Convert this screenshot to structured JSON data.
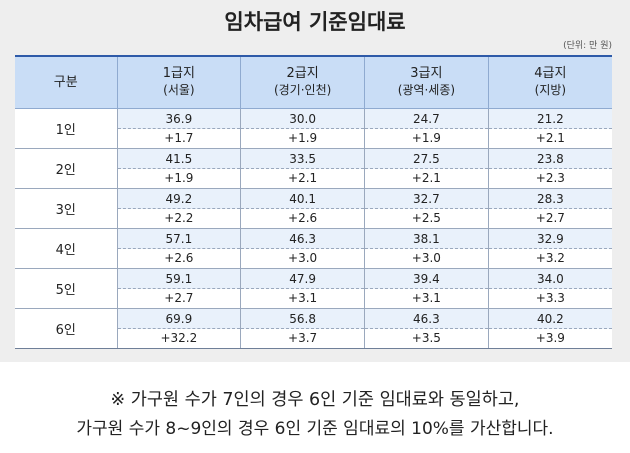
{
  "title": "임차급여 기준임대료",
  "unit_note": "(단위: 만 원)",
  "table": {
    "corner_header": "구분",
    "columns": [
      {
        "label": "1급지",
        "sub": "(서울)"
      },
      {
        "label": "2급지",
        "sub": "(경기·인천)"
      },
      {
        "label": "3급지",
        "sub": "(광역·세종)"
      },
      {
        "label": "4급지",
        "sub": "(지방)"
      }
    ],
    "rows": [
      {
        "label": "1인",
        "cells": [
          {
            "base": "36.9",
            "add": "+1.7"
          },
          {
            "base": "30.0",
            "add": "+1.9"
          },
          {
            "base": "24.7",
            "add": "+1.9"
          },
          {
            "base": "21.2",
            "add": "+2.1"
          }
        ]
      },
      {
        "label": "2인",
        "cells": [
          {
            "base": "41.5",
            "add": "+1.9"
          },
          {
            "base": "33.5",
            "add": "+2.1"
          },
          {
            "base": "27.5",
            "add": "+2.1"
          },
          {
            "base": "23.8",
            "add": "+2.3"
          }
        ]
      },
      {
        "label": "3인",
        "cells": [
          {
            "base": "49.2",
            "add": "+2.2"
          },
          {
            "base": "40.1",
            "add": "+2.6"
          },
          {
            "base": "32.7",
            "add": "+2.5"
          },
          {
            "base": "28.3",
            "add": "+2.7"
          }
        ]
      },
      {
        "label": "4인",
        "cells": [
          {
            "base": "57.1",
            "add": "+2.6"
          },
          {
            "base": "46.3",
            "add": "+3.0"
          },
          {
            "base": "38.1",
            "add": "+3.0"
          },
          {
            "base": "32.9",
            "add": "+3.2"
          }
        ]
      },
      {
        "label": "5인",
        "cells": [
          {
            "base": "59.1",
            "add": "+2.7"
          },
          {
            "base": "47.9",
            "add": "+3.1"
          },
          {
            "base": "39.4",
            "add": "+3.1"
          },
          {
            "base": "34.0",
            "add": "+3.3"
          }
        ]
      },
      {
        "label": "6인",
        "cells": [
          {
            "base": "69.9",
            "add": "+32.2"
          },
          {
            "base": "56.8",
            "add": "+3.7"
          },
          {
            "base": "46.3",
            "add": "+3.5"
          },
          {
            "base": "40.2",
            "add": "+3.9"
          }
        ]
      }
    ]
  },
  "footnote": {
    "line1": "※ 가구원 수가 7인의 경우 6인 기준 임대료와 동일하고,",
    "line2": "가구원 수가 8~9인의 경우 6인 기준 임대료의 10%를 가산합니다."
  }
}
